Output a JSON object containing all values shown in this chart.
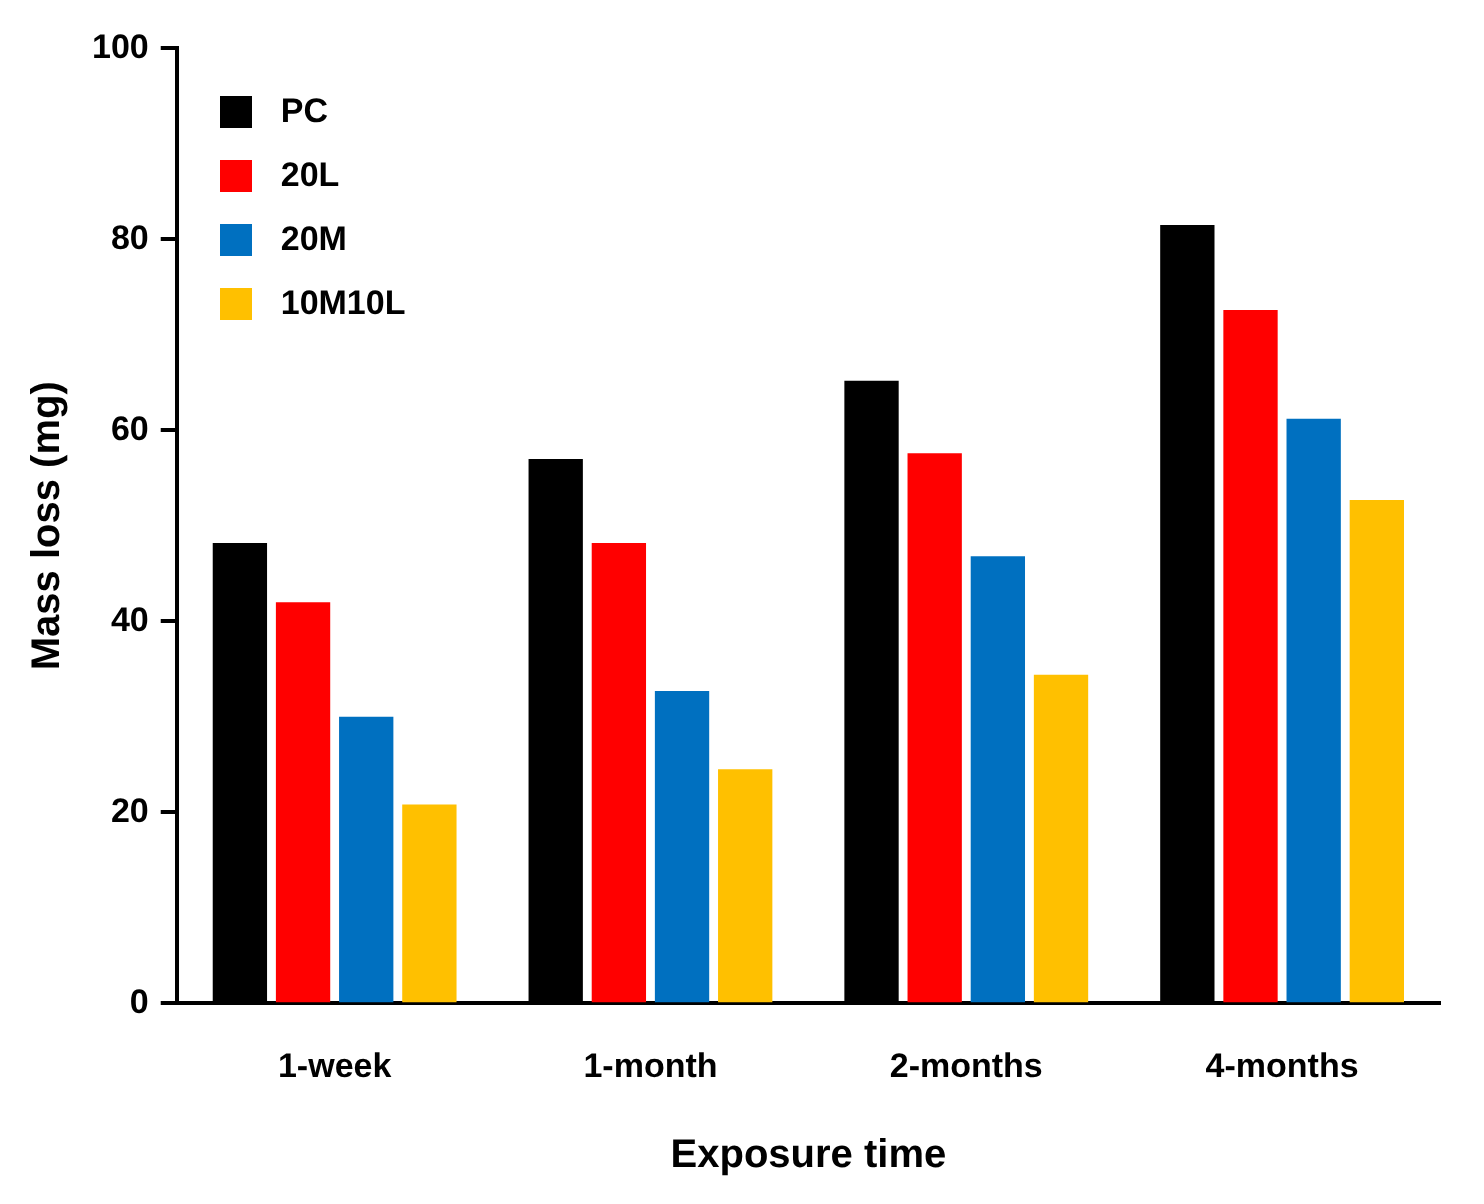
{
  "chart_data": {
    "type": "bar",
    "xlabel": "Exposure time",
    "ylabel": "Mass loss (mg)",
    "categories": [
      "1-week",
      "1-month",
      "2-months",
      "4-months"
    ],
    "series": [
      {
        "name": "PC",
        "color": "#000000",
        "values": [
          48.2,
          57,
          65.2,
          81.5
        ]
      },
      {
        "name": "20L",
        "color": "#ff0000",
        "values": [
          42,
          48.2,
          57.6,
          72.6
        ]
      },
      {
        "name": "20M",
        "color": "#0070c0",
        "values": [
          30,
          32.7,
          46.8,
          61.2
        ]
      },
      {
        "name": "10M10L",
        "color": "#ffc000",
        "values": [
          20.8,
          24.5,
          34.4,
          52.7
        ]
      }
    ],
    "ylim": [
      0,
      100
    ],
    "yticks": [
      0,
      20,
      40,
      60,
      80,
      100
    ],
    "grid": false,
    "legend": "top left"
  }
}
